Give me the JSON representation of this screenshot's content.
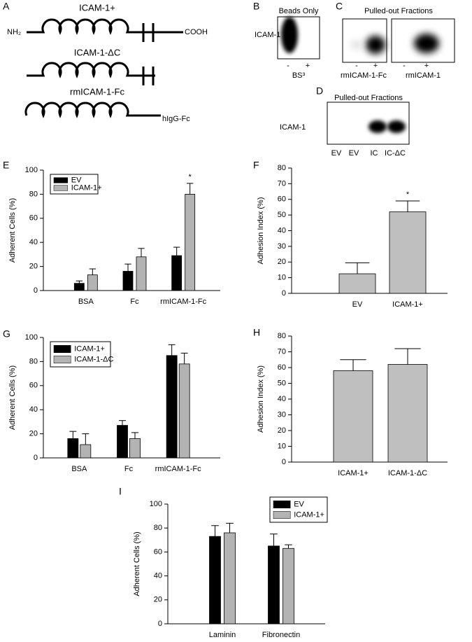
{
  "panels": {
    "A": {
      "label": "A",
      "constructs": [
        {
          "name": "ICAM-1+",
          "n_term": "NH₂",
          "c_term": "COOH"
        },
        {
          "name": "ICAM-1-ΔC"
        },
        {
          "name": "rmICAM-1-Fc",
          "tag": "hIgG-Fc"
        }
      ]
    },
    "B": {
      "label": "B",
      "title": "Beads Only",
      "band": "ICAM-1",
      "lanes": [
        "-",
        "+"
      ],
      "treatment": "BS³"
    },
    "C": {
      "label": "C",
      "title": "Pulled-out Fractions",
      "blots": [
        {
          "lanes": [
            "-",
            "+"
          ],
          "name": "rmICAM-1-Fc"
        },
        {
          "lanes": [
            "-",
            "+"
          ],
          "name": "rmICAM-1"
        }
      ]
    },
    "D": {
      "label": "D",
      "title": "Pulled-out Fractions",
      "band": "ICAM-1",
      "lanes": [
        "EV",
        "EV",
        "IC",
        "IC-ΔC"
      ]
    }
  },
  "chart_data": [
    {
      "type": "bar",
      "panel": "E",
      "y_label": "Adherent Cells (%)",
      "categories": [
        "BSA",
        "Fc",
        "rmICAM-1-Fc"
      ],
      "series": [
        {
          "name": "EV",
          "color": "#000000",
          "values": [
            6,
            16,
            29
          ],
          "errors": [
            2,
            6,
            7
          ]
        },
        {
          "name": "ICAM-1+",
          "color": "#b3b3b3",
          "values": [
            13,
            28,
            80
          ],
          "errors": [
            5,
            7,
            9
          ]
        }
      ],
      "annotation": "*",
      "ylim": [
        0,
        100
      ],
      "yticks": [
        0,
        20,
        40,
        60,
        80,
        100
      ],
      "legend": "upper left"
    },
    {
      "type": "bar",
      "panel": "F",
      "y_label": "Adhesion Index (%)",
      "categories": [
        "EV",
        "ICAM-1+"
      ],
      "values": [
        12.5,
        52
      ],
      "errors": [
        7,
        7
      ],
      "color": "#bfbfbf",
      "annotation": "*",
      "ylim": [
        0,
        80
      ],
      "yticks": [
        0,
        10,
        20,
        30,
        40,
        50,
        60,
        70,
        80
      ]
    },
    {
      "type": "bar",
      "panel": "G",
      "y_label": "Adherent Cells (%)",
      "categories": [
        "BSA",
        "Fc",
        "rmICAM-1-Fc"
      ],
      "series": [
        {
          "name": "ICAM-1+",
          "color": "#000000",
          "values": [
            16,
            27,
            85
          ],
          "errors": [
            6,
            4,
            9
          ]
        },
        {
          "name": "ICAM-1-ΔC",
          "color": "#b3b3b3",
          "values": [
            11,
            16,
            78
          ],
          "errors": [
            9,
            5,
            9
          ]
        }
      ],
      "ylim": [
        0,
        100
      ],
      "yticks": [
        0,
        20,
        40,
        60,
        80,
        100
      ],
      "legend": "upper left"
    },
    {
      "type": "bar",
      "panel": "H",
      "y_label": "Adhesion Index (%)",
      "categories": [
        "ICAM-1+",
        "ICAM-1-ΔC"
      ],
      "values": [
        58,
        62
      ],
      "errors": [
        7,
        10
      ],
      "color": "#bfbfbf",
      "ylim": [
        0,
        80
      ],
      "yticks": [
        0,
        10,
        20,
        30,
        40,
        50,
        60,
        70,
        80
      ]
    },
    {
      "type": "bar",
      "panel": "I",
      "y_label": "Adherent Cells (%)",
      "categories": [
        "Laminin",
        "Fibronectin"
      ],
      "series": [
        {
          "name": "EV",
          "color": "#000000",
          "values": [
            73,
            65
          ],
          "errors": [
            9,
            10
          ]
        },
        {
          "name": "ICAM-1+",
          "color": "#b3b3b3",
          "values": [
            76,
            63
          ],
          "errors": [
            8,
            3
          ]
        }
      ],
      "ylim": [
        0,
        100
      ],
      "yticks": [
        0,
        20,
        40,
        60,
        80,
        100
      ],
      "legend": "upper right"
    }
  ]
}
